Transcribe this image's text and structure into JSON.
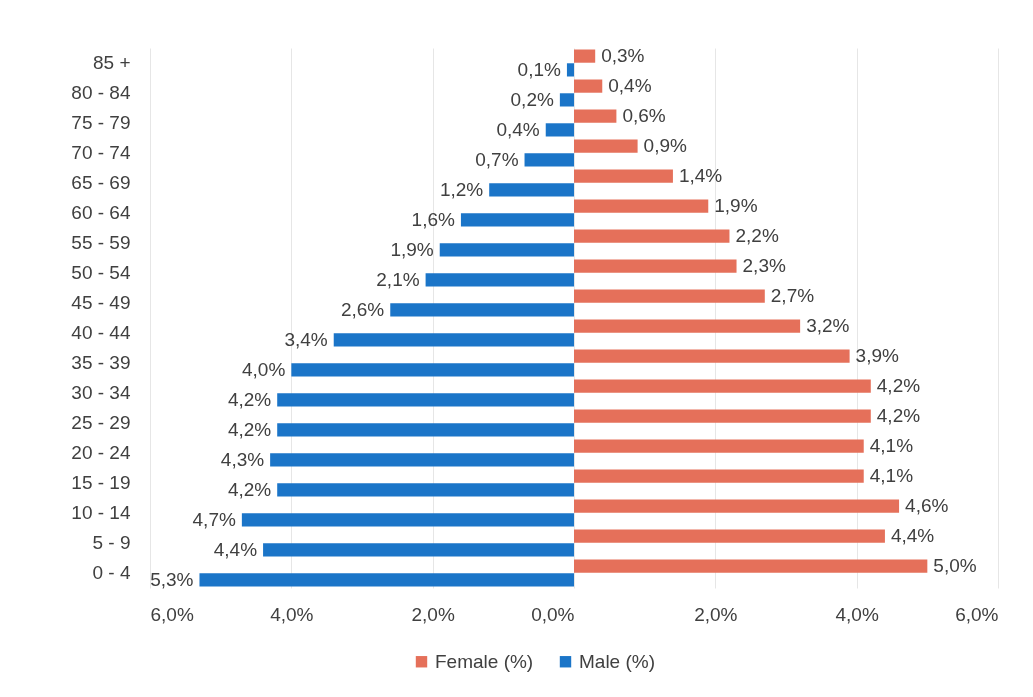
{
  "chart_data": [
    {
      "type": "bar",
      "orientation": "horizontal",
      "categories": [
        "85 +",
        "80 - 84",
        "75 - 79",
        "70 - 74",
        "65 - 69",
        "60 - 64",
        "55 - 59",
        "50 - 54",
        "45 - 49",
        "40 - 44",
        "35 - 39",
        "30 - 34",
        "25 - 29",
        "20 - 24",
        "15 - 19",
        "10 - 14",
        "5 - 9",
        "0 - 4"
      ],
      "series": [
        {
          "name": "Male (%)",
          "color": "#1b75c8",
          "values": [
            0.1,
            0.2,
            0.4,
            0.7,
            1.2,
            1.6,
            1.9,
            2.1,
            2.6,
            3.4,
            4.0,
            4.2,
            4.2,
            4.3,
            4.2,
            4.7,
            4.4,
            5.3
          ],
          "value_labels": [
            "0,1%",
            "0,2%",
            "0,4%",
            "0,7%",
            "1,2%",
            "1,6%",
            "1,9%",
            "2,1%",
            "2,6%",
            "3,4%",
            "4,0%",
            "4,2%",
            "4,2%",
            "4,3%",
            "4,2%",
            "4,7%",
            "4,4%",
            "5,3%"
          ]
        }
      ],
      "xlim": [
        6,
        0
      ],
      "xticks": [
        {
          "value": 6,
          "label": "6,0%"
        },
        {
          "value": 4,
          "label": "4,0%"
        },
        {
          "value": 2,
          "label": "2,0%"
        },
        {
          "value": 0,
          "label": "0,0%"
        }
      ],
      "grid": "x",
      "legend": "bottom"
    },
    {
      "type": "bar",
      "orientation": "horizontal",
      "categories": [
        "85 +",
        "80 - 84",
        "75 - 79",
        "70 - 74",
        "65 - 69",
        "60 - 64",
        "55 - 59",
        "50 - 54",
        "45 - 49",
        "40 - 44",
        "35 - 39",
        "30 - 34",
        "25 - 29",
        "20 - 24",
        "15 - 19",
        "10 - 14",
        "5 - 9",
        "0 - 4"
      ],
      "series": [
        {
          "name": "Female (%)",
          "color": "#e5705a",
          "values": [
            0.3,
            0.4,
            0.6,
            0.9,
            1.4,
            1.9,
            2.2,
            2.3,
            2.7,
            3.2,
            3.9,
            4.2,
            4.2,
            4.1,
            4.1,
            4.6,
            4.4,
            5.0
          ],
          "value_labels": [
            "0,3%",
            "0,4%",
            "0,6%",
            "0,9%",
            "1,4%",
            "1,9%",
            "2,2%",
            "2,3%",
            "2,7%",
            "3,2%",
            "3,9%",
            "4,2%",
            "4,2%",
            "4,1%",
            "4,1%",
            "4,6%",
            "4,4%",
            "5,0%"
          ]
        }
      ],
      "xlim": [
        0,
        6
      ],
      "xticks": [
        {
          "value": 2,
          "label": "2,0%"
        },
        {
          "value": 4,
          "label": "4,0%"
        },
        {
          "value": 6,
          "label": "6,0%"
        }
      ],
      "grid": "x",
      "tick_labels": "x",
      "legend": "bottom"
    }
  ]
}
